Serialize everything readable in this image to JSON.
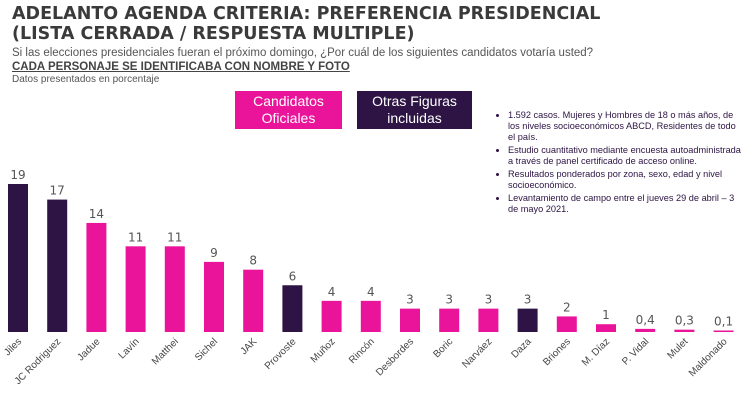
{
  "header": {
    "title_line1": "ADELANTO AGENDA CRITERIA: PREFERENCIA PRESIDENCIAL",
    "title_line2": "(LISTA CERRADA / RESPUESTA MULTIPLE)",
    "question": "Si las elecciones presidenciales fueran el próximo domingo, ¿Por cuál de los siguientes candidatos votaría usted?",
    "subtitle": "CADA PERSONAJE SE IDENTIFICABA CON NOMBRE Y FOTO",
    "note": "Datos presentados en porcentaje"
  },
  "legend": {
    "oficiales": "Candidatos Oficiales",
    "otras": "Otras Figuras incluidas"
  },
  "methodology": [
    "1.592 casos. Mujeres y Hombres de 18 o más años, de los niveles socioeconómicos ABCD, Residentes de todo el país.",
    "Estudio cuantitativo mediante encuesta autoadministrada a través de panel certificado de acceso online.",
    "Resultados ponderados por zona, sexo, edad y nivel socioeconómico.",
    "Levantamiento de campo entre el jueves 29 de abril – 3 de mayo 2021."
  ],
  "colors": {
    "oficiales": "#ea149b",
    "otras": "#2d1444"
  },
  "chart_data": {
    "type": "bar",
    "categories": [
      "Jiles",
      "JC Rodriguez",
      "Jadue",
      "Lavín",
      "Matthei",
      "Sichel",
      "JAK",
      "Provoste",
      "Muñoz",
      "Rincón",
      "Desbordes",
      "Boric",
      "Narváez",
      "Daza",
      "Briones",
      "M. Díaz",
      "P. Vidal",
      "Mulet",
      "Maldonado"
    ],
    "values": [
      19,
      17,
      14,
      11,
      11,
      9,
      8,
      6,
      4,
      4,
      3,
      3,
      3,
      3,
      2,
      1,
      0.4,
      0.3,
      0.1
    ],
    "value_labels": [
      "19",
      "17",
      "14",
      "11",
      "11",
      "9",
      "8",
      "6",
      "4",
      "4",
      "3",
      "3",
      "3",
      "3",
      "2",
      "1",
      "0,4",
      "0,3",
      "0,1"
    ],
    "groups": [
      "otras",
      "otras",
      "oficiales",
      "oficiales",
      "oficiales",
      "oficiales",
      "oficiales",
      "otras",
      "oficiales",
      "oficiales",
      "oficiales",
      "oficiales",
      "oficiales",
      "otras",
      "oficiales",
      "oficiales",
      "oficiales",
      "oficiales",
      "oficiales"
    ],
    "ylim": [
      0,
      19
    ]
  }
}
